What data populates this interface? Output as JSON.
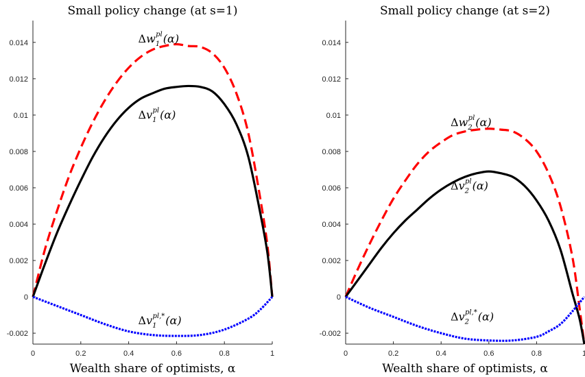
{
  "chart_data": [
    {
      "type": "line",
      "title": "Small policy change (at s=1)",
      "xlabel": "Wealth share of optimists, α",
      "ylabel": "",
      "xlim": [
        0,
        1
      ],
      "ylim": [
        -0.0026,
        0.0152
      ],
      "grid": false,
      "x_ticks": [
        "0",
        "0.2",
        "0.4",
        "0.6",
        "0.8",
        "1"
      ],
      "y_ticks": [
        "-0.002",
        "0",
        "0.002",
        "0.004",
        "0.006",
        "0.008",
        "0.01",
        "0.012",
        "0.014"
      ],
      "series": [
        {
          "label": {
            "main": "Δw",
            "sub": "1",
            "sup": "pl",
            "arg": "(α)"
          },
          "color": "#ff0000",
          "style": "dashed",
          "x": [
            0,
            0.05,
            0.1,
            0.15,
            0.2,
            0.25,
            0.3,
            0.35,
            0.4,
            0.45,
            0.5,
            0.55,
            0.6,
            0.65,
            0.7,
            0.75,
            0.8,
            0.85,
            0.9,
            0.95,
            0.98,
            1.0
          ],
          "values": [
            0,
            0.0026,
            0.0047,
            0.0066,
            0.0082,
            0.0096,
            0.0108,
            0.0118,
            0.0126,
            0.0132,
            0.0136,
            0.0138,
            0.0139,
            0.0138,
            0.01375,
            0.0134,
            0.0126,
            0.0112,
            0.009,
            0.0054,
            0.0028,
            0
          ]
        },
        {
          "label": {
            "main": "Δv",
            "sub": "1",
            "sup": "pl",
            "arg": "(α)"
          },
          "color": "#000000",
          "style": "solid",
          "x": [
            0,
            0.05,
            0.1,
            0.15,
            0.2,
            0.25,
            0.3,
            0.35,
            0.4,
            0.45,
            0.5,
            0.55,
            0.6,
            0.65,
            0.7,
            0.75,
            0.8,
            0.85,
            0.9,
            0.95,
            0.98,
            1.0
          ],
          "values": [
            0,
            0.0018,
            0.0035,
            0.005,
            0.0064,
            0.0077,
            0.0088,
            0.0097,
            0.0104,
            0.0109,
            0.0112,
            0.01145,
            0.01155,
            0.0116,
            0.01155,
            0.0113,
            0.0106,
            0.0095,
            0.0077,
            0.0046,
            0.0024,
            0
          ]
        },
        {
          "label": {
            "main": "Δv",
            "sub": "1",
            "sup": "pl,*",
            "arg": "(α)"
          },
          "color": "#0000ff",
          "style": "dotted",
          "x": [
            0,
            0.1,
            0.2,
            0.3,
            0.4,
            0.5,
            0.6,
            0.7,
            0.8,
            0.9,
            0.95,
            1.0
          ],
          "values": [
            0,
            -0.0005,
            -0.001,
            -0.0015,
            -0.0019,
            -0.0021,
            -0.00215,
            -0.0021,
            -0.0018,
            -0.0012,
            -0.0007,
            0
          ]
        }
      ]
    },
    {
      "type": "line",
      "title": "Small policy change (at s=2)",
      "xlabel": "Wealth share of optimists, α",
      "ylabel": "",
      "xlim": [
        0,
        1
      ],
      "ylim": [
        -0.0026,
        0.0152
      ],
      "grid": false,
      "x_ticks": [
        "0",
        "0.2",
        "0.4",
        "0.6",
        "0.8",
        "1"
      ],
      "y_ticks": [
        "-0.002",
        "0",
        "0.002",
        "0.004",
        "0.006",
        "0.008",
        "0.01",
        "0.012",
        "0.014"
      ],
      "series": [
        {
          "label": {
            "main": "Δw",
            "sub": "2",
            "sup": "pl",
            "arg": "(α)"
          },
          "color": "#ff0000",
          "style": "dashed",
          "x": [
            0,
            0.05,
            0.1,
            0.15,
            0.2,
            0.25,
            0.3,
            0.35,
            0.4,
            0.45,
            0.5,
            0.55,
            0.6,
            0.65,
            0.7,
            0.75,
            0.8,
            0.85,
            0.9,
            0.95,
            0.98,
            1.0
          ],
          "values": [
            0,
            0.0015,
            0.0029,
            0.0042,
            0.0054,
            0.0064,
            0.0073,
            0.008,
            0.0085,
            0.0089,
            0.0091,
            0.0092,
            0.00925,
            0.0092,
            0.0091,
            0.0087,
            0.008,
            0.0068,
            0.005,
            0.0022,
            -0.0006,
            -0.0026
          ]
        },
        {
          "label": {
            "main": "Δv",
            "sub": "2",
            "sup": "pl",
            "arg": "(α)"
          },
          "color": "#000000",
          "style": "solid",
          "x": [
            0,
            0.05,
            0.1,
            0.15,
            0.2,
            0.25,
            0.3,
            0.35,
            0.4,
            0.45,
            0.5,
            0.55,
            0.6,
            0.65,
            0.7,
            0.75,
            0.8,
            0.85,
            0.9,
            0.95,
            0.98,
            1.0
          ],
          "values": [
            0,
            0.0009,
            0.0018,
            0.0027,
            0.0035,
            0.0042,
            0.0048,
            0.0054,
            0.0059,
            0.0063,
            0.0066,
            0.0068,
            0.0069,
            0.0068,
            0.0066,
            0.0061,
            0.0053,
            0.0042,
            0.0026,
            0.0002,
            -0.0012,
            -0.0026
          ]
        },
        {
          "label": {
            "main": "Δv",
            "sub": "2",
            "sup": "pl,*",
            "arg": "(α)"
          },
          "color": "#0000ff",
          "style": "dotted",
          "x": [
            0,
            0.1,
            0.2,
            0.3,
            0.4,
            0.5,
            0.6,
            0.7,
            0.8,
            0.85,
            0.9,
            0.95,
            1.0
          ],
          "values": [
            0,
            -0.0006,
            -0.0011,
            -0.0016,
            -0.002,
            -0.0023,
            -0.0024,
            -0.0024,
            -0.0022,
            -0.0019,
            -0.0015,
            -0.0008,
            0
          ]
        }
      ]
    }
  ]
}
